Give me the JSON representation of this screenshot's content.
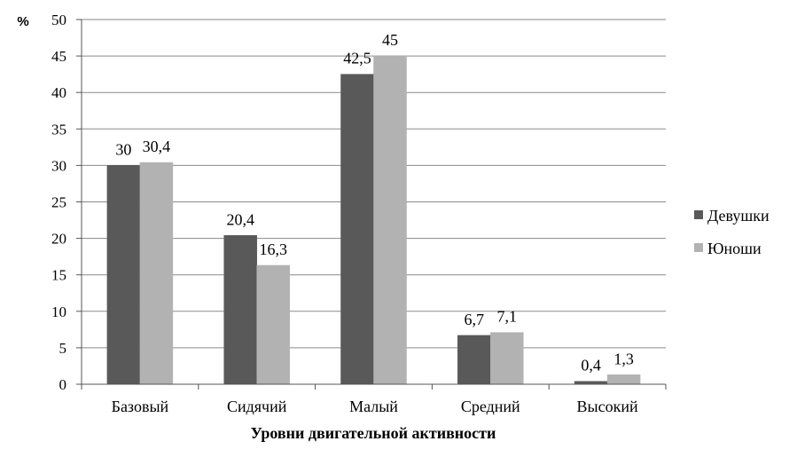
{
  "chart_data": {
    "type": "bar",
    "ylabel": "%",
    "xlabel": "Уровни двигательной активности",
    "ylim": [
      0,
      50
    ],
    "ytick_step": 5,
    "grid": true,
    "legend_position": "right",
    "categories": [
      "Базовый",
      "Сидячий",
      "Малый",
      "Средний",
      "Высокий"
    ],
    "series": [
      {
        "name": "Девушки",
        "color": "#595959",
        "values": [
          30,
          20.4,
          42.5,
          6.7,
          0.4
        ],
        "labels": [
          "30",
          "20,4",
          "42,5",
          "6,7",
          "0,4"
        ]
      },
      {
        "name": "Юноши",
        "color": "#b2b2b2",
        "values": [
          30.4,
          16.3,
          45,
          7.1,
          1.3
        ],
        "labels": [
          "30,4",
          "16,3",
          "45",
          "7,1",
          "1,3"
        ]
      }
    ]
  }
}
